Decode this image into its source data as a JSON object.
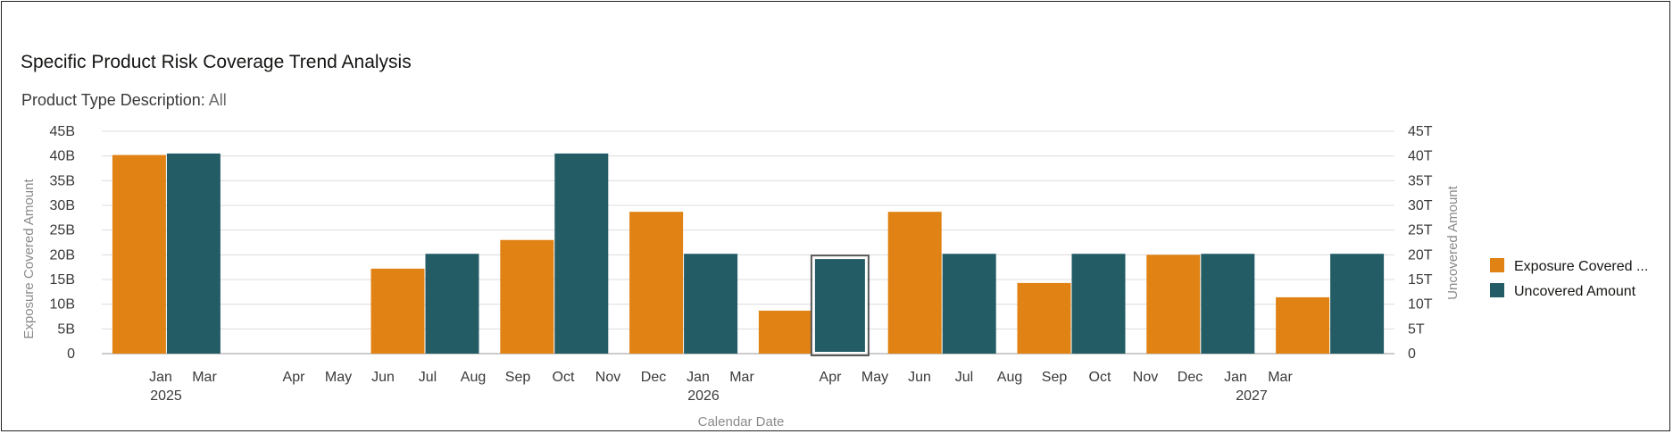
{
  "title": "Specific Product Risk Coverage Trend Analysis",
  "filter": {
    "label": "Product Type Description:",
    "value": "All"
  },
  "chart_data": {
    "type": "bar",
    "title": "Specific Product Risk Coverage Trend Analysis",
    "xlabel": "Calendar Date",
    "ylabel": "Exposure Covered Amount",
    "y2label": "Uncovered Amount",
    "ylim": [
      0,
      45
    ],
    "y2lim": [
      0,
      45
    ],
    "yticks": [
      "0",
      "5B",
      "10B",
      "15B",
      "20B",
      "25B",
      "30B",
      "35B",
      "40B",
      "45B"
    ],
    "y2ticks": [
      "0",
      "5T",
      "10T",
      "15T",
      "20T",
      "25T",
      "30T",
      "35T",
      "40T",
      "45T"
    ],
    "groups": [
      {
        "exposure": 40.2,
        "uncovered": 40.5
      },
      {
        "exposure": null,
        "uncovered": null
      },
      {
        "exposure": 17.2,
        "uncovered": 20.2
      },
      {
        "exposure": 23.0,
        "uncovered": 40.5
      },
      {
        "exposure": 28.7,
        "uncovered": 20.2
      },
      {
        "exposure": 8.7,
        "uncovered": 19.5,
        "highlight": "uncovered"
      },
      {
        "exposure": 28.7,
        "uncovered": 20.2
      },
      {
        "exposure": 14.3,
        "uncovered": 20.2
      },
      {
        "exposure": 20.0,
        "uncovered": 20.2
      },
      {
        "exposure": 11.4,
        "uncovered": 20.2
      }
    ],
    "month_labels": [
      "Jan",
      "Mar",
      "Apr",
      "May",
      "Jun",
      "Jul",
      "Aug",
      "Sep",
      "Oct",
      "Nov",
      "Dec",
      "Jan",
      "Mar",
      "Apr",
      "May",
      "Jun",
      "Jul",
      "Aug",
      "Sep",
      "Oct",
      "Nov",
      "Dec",
      "Jan",
      "Mar"
    ],
    "year_labels": [
      "2025",
      "2026",
      "2027"
    ],
    "series": [
      {
        "name": "Exposure Covered ...",
        "color": "#e08214"
      },
      {
        "name": "Uncovered Amount",
        "color": "#235c65"
      }
    ],
    "grid": true,
    "legend_position": "right"
  }
}
